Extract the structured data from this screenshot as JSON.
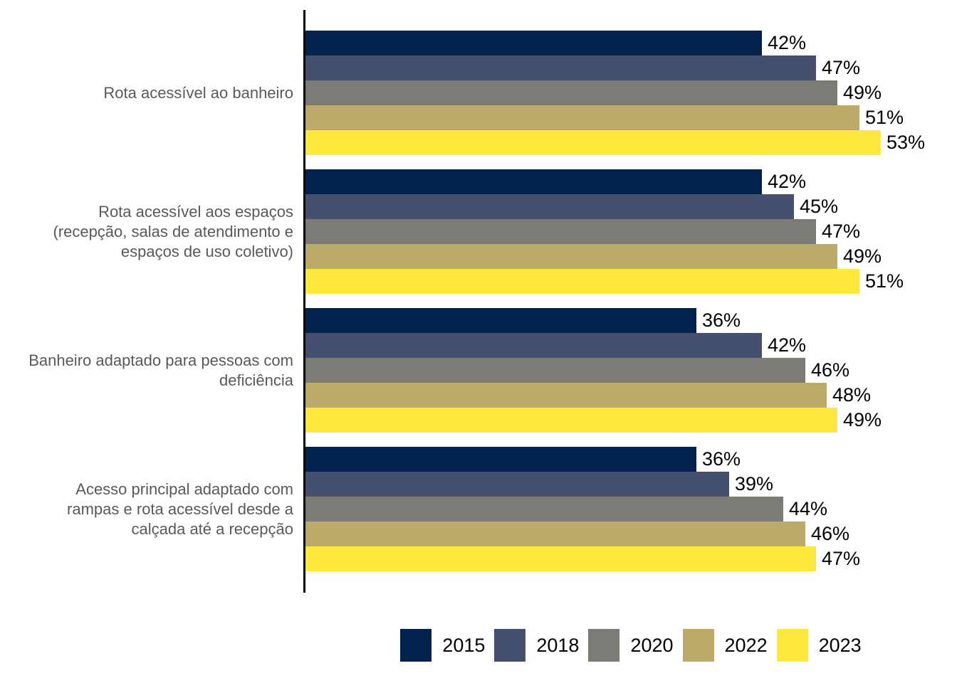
{
  "chart_data": {
    "type": "bar",
    "orientation": "horizontal",
    "title": "",
    "xlabel": "",
    "ylabel": "",
    "unit": "%",
    "xlim": [
      0,
      60
    ],
    "grid": false,
    "legend_position": "bottom",
    "axis_color": "#000000",
    "background_color": "#ffffff",
    "value_label_format": "{v}%",
    "categories": [
      {
        "label": "Rota acessível ao banheiro",
        "lines": [
          "Rota acessível ao banheiro"
        ]
      },
      {
        "label": "Rota acessível aos espaços (recepção, salas de atendimento e espaços de uso coletivo)",
        "lines": [
          "Rota acessível aos espaços",
          "(recepção, salas de atendimento e",
          "espaços de uso coletivo)"
        ]
      },
      {
        "label": "Banheiro adaptado para pessoas com deficiência",
        "lines": [
          "Banheiro adaptado para pessoas com",
          "deficiência"
        ]
      },
      {
        "label": "Acesso principal adaptado com rampas e rota acessível desde a calçada até a recepção",
        "lines": [
          "Acesso principal adaptado com",
          "rampas e rota acessível desde a",
          "calçada até a recepção"
        ]
      }
    ],
    "series": [
      {
        "name": "2015",
        "color": "#02234e",
        "values": [
          42,
          42,
          36,
          36
        ]
      },
      {
        "name": "2018",
        "color": "#454f6e",
        "values": [
          47,
          45,
          42,
          39
        ]
      },
      {
        "name": "2020",
        "color": "#7c7b76",
        "values": [
          49,
          47,
          46,
          44
        ]
      },
      {
        "name": "2022",
        "color": "#bcab68",
        "values": [
          51,
          49,
          48,
          46
        ]
      },
      {
        "name": "2023",
        "color": "#ffe83e",
        "values": [
          53,
          51,
          49,
          47
        ]
      }
    ],
    "text_colors": {
      "category_label": "#595959",
      "value_label": "#000000",
      "legend_label": "#000000"
    }
  }
}
